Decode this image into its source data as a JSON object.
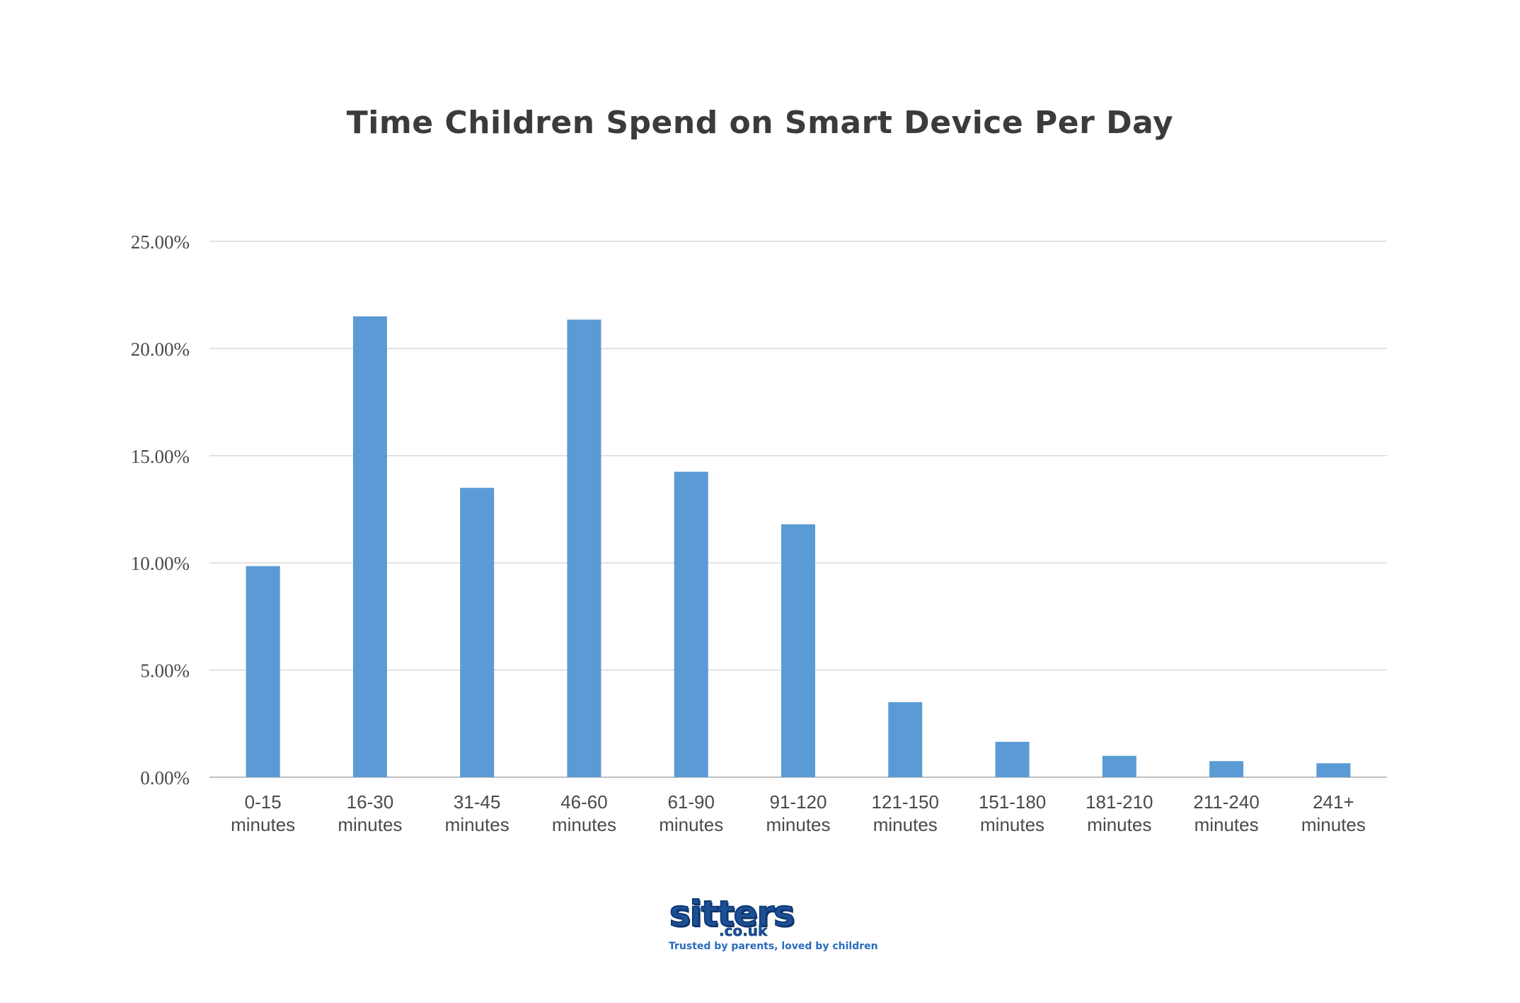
{
  "chart_data": {
    "type": "bar",
    "title": "Time Children Spend on Smart Device Per Day",
    "xlabel": "",
    "ylabel": "",
    "ylim": [
      0,
      25
    ],
    "yticks": [
      "0.00%",
      "5.00%",
      "10.00%",
      "15.00%",
      "20.00%",
      "25.00%"
    ],
    "grid": true,
    "legend": "none",
    "bar_color": "#5b9bd5",
    "categories": [
      [
        "0-15",
        "minutes"
      ],
      [
        "16-30",
        "minutes"
      ],
      [
        "31-45",
        "minutes"
      ],
      [
        "46-60",
        "minutes"
      ],
      [
        "61-90",
        "minutes"
      ],
      [
        "91-120",
        "minutes"
      ],
      [
        "121-150",
        "minutes"
      ],
      [
        "151-180",
        "minutes"
      ],
      [
        "181-210",
        "minutes"
      ],
      [
        "211-240",
        "minutes"
      ],
      [
        "241+",
        "minutes"
      ]
    ],
    "values": [
      9.85,
      21.5,
      13.5,
      21.35,
      14.25,
      11.8,
      3.5,
      1.65,
      1.0,
      0.75,
      0.65
    ]
  },
  "branding": {
    "logo_word": "sitters",
    "logo_domain": ".co.uk",
    "tagline": "Trusted by parents, loved by children",
    "logo_color": "#1c4f95"
  }
}
